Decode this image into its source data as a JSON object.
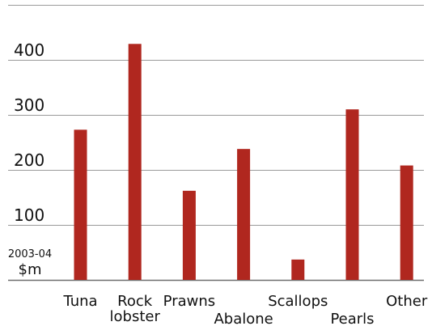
{
  "chart_data": {
    "type": "bar",
    "categories": [
      "Tuna",
      "Rock lobster",
      "Prawns",
      "Abalone",
      "Scallops",
      "Pearls",
      "Other"
    ],
    "category_labels": [
      [
        "Tuna"
      ],
      [
        "Rock",
        "lobster"
      ],
      [
        "Prawns"
      ],
      [
        "Abalone"
      ],
      [
        "Scallops"
      ],
      [
        "Pearls"
      ],
      [
        "Other"
      ]
    ],
    "label_rows": [
      0,
      0,
      0,
      1,
      0,
      1,
      0
    ],
    "values": [
      273,
      429,
      162,
      238,
      37,
      310,
      208
    ],
    "ylim": [
      0,
      500
    ],
    "yticks": [
      0,
      100,
      200,
      300,
      400,
      500
    ],
    "ytick_labels": [
      "",
      "100",
      "200",
      "300",
      "400",
      ""
    ],
    "unit_label": {
      "line1": "2003-04",
      "line2": "$m"
    },
    "title": "",
    "xlabel": "",
    "ylabel": "",
    "grid": true,
    "colors": {
      "bar": "#b0271f",
      "grid": "#9a9a9a",
      "axis": "#6e6e6e"
    }
  }
}
